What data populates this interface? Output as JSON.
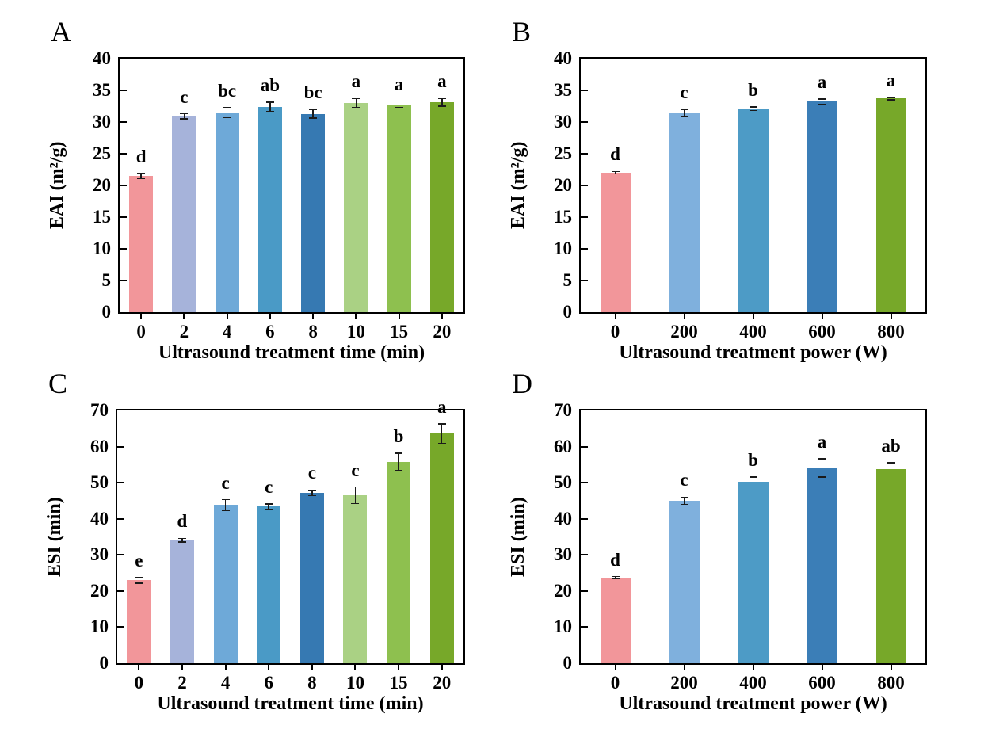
{
  "background_color": "#ffffff",
  "chart_data": [
    {
      "panel": "A",
      "type": "bar",
      "title": "",
      "xlabel": "Ultrasound treatment time (min)",
      "ylabel": "EAI (m²/g)",
      "categories": [
        "0",
        "2",
        "4",
        "6",
        "8",
        "10",
        "15",
        "20"
      ],
      "values": [
        21.5,
        30.9,
        31.5,
        32.4,
        31.3,
        33.0,
        32.8,
        33.1
      ],
      "errors": [
        0.4,
        0.4,
        0.8,
        0.7,
        0.7,
        0.7,
        0.5,
        0.6
      ],
      "sig_letters": [
        "d",
        "c",
        "bc",
        "ab",
        "bc",
        "a",
        "a",
        "a"
      ],
      "bar_colors": [
        "#f2969a",
        "#a6b3da",
        "#6ea9d8",
        "#4a9ac6",
        "#3679b2",
        "#aad184",
        "#8ec04f",
        "#77a829"
      ],
      "ylim": [
        0,
        40
      ],
      "ytick_step": 5,
      "grid": false,
      "legend": "none"
    },
    {
      "panel": "B",
      "type": "bar",
      "title": "",
      "xlabel": "Ultrasound treatment power (W)",
      "ylabel": "EAI (m²/g)",
      "categories": [
        "0",
        "200",
        "400",
        "600",
        "800"
      ],
      "values": [
        22.0,
        31.4,
        32.1,
        33.2,
        33.7
      ],
      "errors": [
        0.2,
        0.6,
        0.3,
        0.4,
        0.2
      ],
      "sig_letters": [
        "d",
        "c",
        "b",
        "a",
        "a"
      ],
      "bar_colors": [
        "#f2969a",
        "#7fb0dd",
        "#4d9bc6",
        "#3b7eb7",
        "#77a829"
      ],
      "ylim": [
        0,
        40
      ],
      "ytick_step": 5,
      "grid": false,
      "legend": "none"
    },
    {
      "panel": "C",
      "type": "bar",
      "title": "",
      "xlabel": "Ultrasound treatment time (min)",
      "ylabel": "ESI (min)",
      "categories": [
        "0",
        "2",
        "4",
        "6",
        "8",
        "10",
        "15",
        "20"
      ],
      "values": [
        23.0,
        34.1,
        43.8,
        43.4,
        47.2,
        46.5,
        55.8,
        63.6
      ],
      "errors": [
        0.8,
        0.5,
        1.5,
        0.7,
        0.8,
        2.3,
        2.4,
        2.7
      ],
      "sig_letters": [
        "e",
        "d",
        "c",
        "c",
        "c",
        "c",
        "b",
        "a"
      ],
      "bar_colors": [
        "#f2969a",
        "#a6b3da",
        "#6ea9d8",
        "#4a9ac6",
        "#3679b2",
        "#aad184",
        "#8ec04f",
        "#77a829"
      ],
      "ylim": [
        0,
        70
      ],
      "ytick_step": 10,
      "grid": false,
      "legend": "none"
    },
    {
      "panel": "D",
      "type": "bar",
      "title": "",
      "xlabel": "Ultrasound treatment power (W)",
      "ylabel": "ESI (min)",
      "categories": [
        "0",
        "200",
        "400",
        "600",
        "800"
      ],
      "values": [
        23.7,
        45.0,
        50.2,
        54.1,
        53.8
      ],
      "errors": [
        0.3,
        1.0,
        1.4,
        2.5,
        1.7
      ],
      "sig_letters": [
        "d",
        "c",
        "b",
        "a",
        "ab"
      ],
      "bar_colors": [
        "#f2969a",
        "#7fb0dd",
        "#4d9bc6",
        "#3b7eb7",
        "#77a829"
      ],
      "ylim": [
        0,
        70
      ],
      "ytick_step": 10,
      "grid": false,
      "legend": "none"
    }
  ]
}
